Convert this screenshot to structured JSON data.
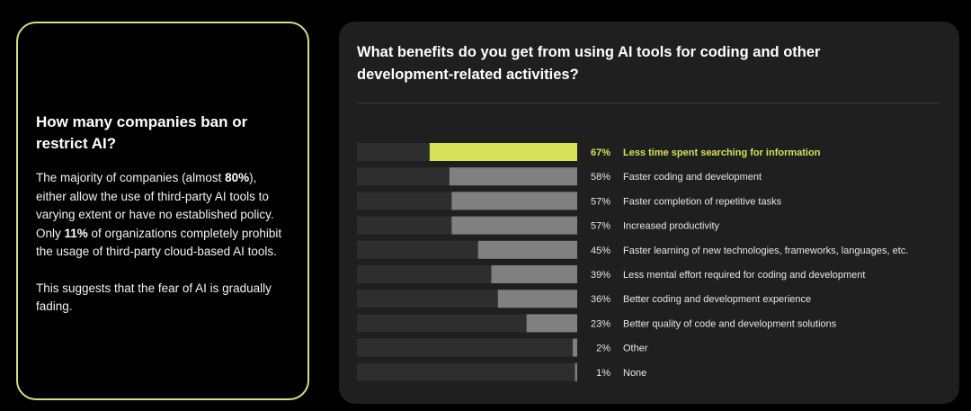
{
  "left_card": {
    "title": "How many companies ban or restrict AI?",
    "para1_a": "The majority of companies (almost ",
    "para1_b": "80%",
    "para1_c": "), either allow the use of third-party AI tools to varying extent or have no established policy. Only ",
    "para1_d": "11%",
    "para1_e": " of organizations completely prohibit the usage of third-party cloud-based AI tools.",
    "para2": "This suggests that the fear of AI is gradually fading."
  },
  "chart_data": {
    "type": "bar",
    "orientation": "horizontal",
    "title": "What benefits do you get from using AI tools for coding and other development-related activities?",
    "xlim": [
      0,
      100
    ],
    "categories": [
      "Less time spent searching for information",
      "Faster coding and development",
      "Faster completion of repetitive tasks",
      "Increased productivity",
      "Faster learning of new technologies, frameworks, languages, etc.",
      "Less mental effort required for coding and development",
      "Better coding and development experience",
      "Better quality of code and development solutions",
      "Other",
      "None"
    ],
    "values": [
      67,
      58,
      57,
      57,
      45,
      39,
      36,
      23,
      2,
      1
    ],
    "value_labels": [
      "67%",
      "58%",
      "57%",
      "57%",
      "45%",
      "39%",
      "36%",
      "23%",
      "2%",
      "1%"
    ],
    "highlight_index": 0,
    "grid": false,
    "legend": "none",
    "colors": {
      "highlight": "#d6e157",
      "bar": "#808080",
      "track": "#2e2e2e",
      "text": "#e6e6e6"
    }
  }
}
